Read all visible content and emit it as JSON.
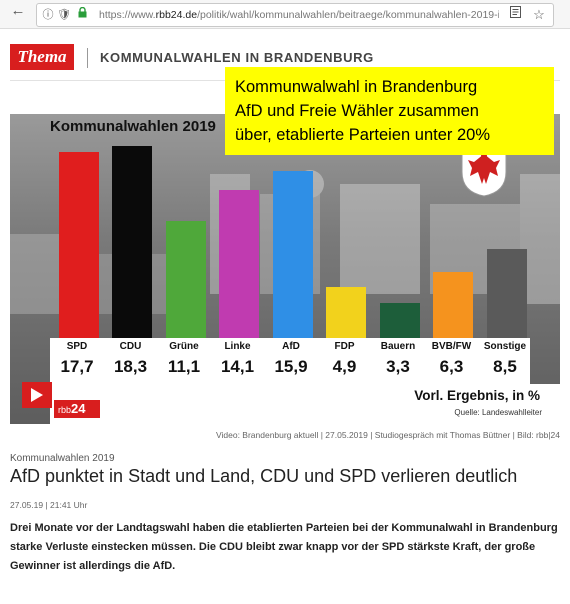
{
  "browser": {
    "url_prefix": "https://www.",
    "url_domain": "rbb24.de",
    "url_path": "/politik/wahl/kommunalwahlen/beitraege/kommunalwahlen-2019-i"
  },
  "header": {
    "badge": "Thema",
    "section_title": "KOMMUNALWAHLEN IN BRANDENBURG"
  },
  "callout": {
    "line1": "Kommunwalwahl in Brandenburg",
    "line2": "AfD und Freie Wähler zusammen",
    "line3": "über, etablierte Parteien unter 20%"
  },
  "chart_data": {
    "type": "bar",
    "title": "Kommunalwahlen 2019",
    "categories": [
      "SPD",
      "CDU",
      "Grüne",
      "Linke",
      "AfD",
      "FDP",
      "Bauern",
      "BVB/FW",
      "Sonstige"
    ],
    "values": [
      17.7,
      18.3,
      11.1,
      14.1,
      15.9,
      4.9,
      3.3,
      6.3,
      8.5
    ],
    "value_labels": [
      "17,7",
      "18,3",
      "11,1",
      "14,1",
      "15,9",
      "4,9",
      "3,3",
      "6,3",
      "8,5"
    ],
    "colors": [
      "#e01e1e",
      "#0a0a0a",
      "#4fa83a",
      "#c03bb0",
      "#2f8fe6",
      "#f2d21c",
      "#1d5e3a",
      "#f5931e",
      "#5a5a5a"
    ],
    "footer": "Vorl. Ergebnis, in %",
    "source": "Quelle: Landeswahlleiter",
    "ylim": [
      0,
      20
    ]
  },
  "player": {
    "brand_small": "rbb",
    "brand_big": "24"
  },
  "caption": "Video: Brandenburg aktuell | 27.05.2019 | Studiogespräch mit Thomas Büttner | Bild: rbb|24",
  "article": {
    "kicker": "Kommunalwahlen 2019",
    "headline": "AfD punktet in Stadt und Land, CDU und SPD verlieren deutlich",
    "date": "27.05.19 | 21:41 Uhr",
    "lead": "Drei Monate vor der Landtagswahl haben die etablierten Parteien bei der Kommunalwahl in Brandenburg starke Verluste einstecken müssen. Die CDU bleibt zwar knapp vor der SPD stärkste Kraft, der große Gewinner ist allerdings die AfD."
  }
}
